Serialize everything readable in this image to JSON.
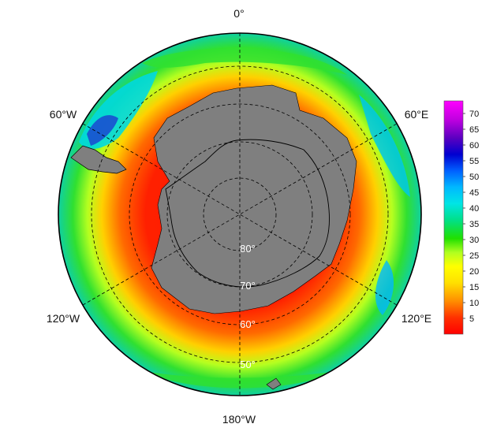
{
  "map": {
    "projection": "south-polar-stereographic",
    "land_color": "#7f7f7f",
    "grid": true,
    "longitude_labels": [
      {
        "lon": 0,
        "text": "0°"
      },
      {
        "lon": 60,
        "text": "60°E"
      },
      {
        "lon": 120,
        "text": "120°E"
      },
      {
        "lon": 180,
        "text": "180°W"
      },
      {
        "lon": -120,
        "text": "120°W"
      },
      {
        "lon": -60,
        "text": "60°W"
      }
    ],
    "latitude_labels": [
      {
        "lat": -80,
        "text": "80°"
      },
      {
        "lat": -70,
        "text": "70°"
      },
      {
        "lat": -60,
        "text": "60°"
      },
      {
        "lat": -50,
        "text": "50°"
      }
    ]
  },
  "colorbar": {
    "min": 0,
    "max": 74,
    "ticks": [
      5,
      10,
      15,
      20,
      25,
      30,
      35,
      40,
      45,
      50,
      55,
      60,
      65,
      70
    ],
    "ticks_text": [
      "5",
      "10",
      "15",
      "20",
      "25",
      "30",
      "35",
      "40",
      "45",
      "50",
      "55",
      "60",
      "65",
      "70"
    ],
    "colors": [
      "#ff0000",
      "#ff4500",
      "#ffa500",
      "#ffff00",
      "#adff2f",
      "#00d400",
      "#00e08a",
      "#00e5e5",
      "#00a5ff",
      "#0050ff",
      "#0000c8",
      "#6a00c8",
      "#d000e0",
      "#ff00ff"
    ]
  }
}
